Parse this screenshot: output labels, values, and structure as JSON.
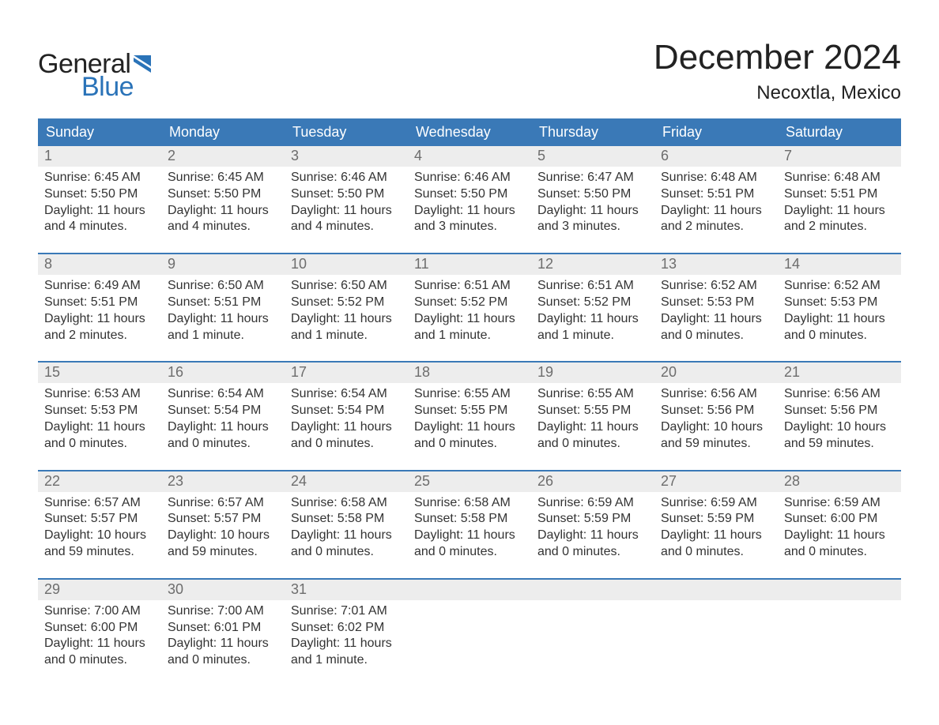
{
  "brand": {
    "word1": "General",
    "word2": "Blue"
  },
  "title": "December 2024",
  "location": "Necoxtla, Mexico",
  "colors": {
    "header_bg": "#3a79b7",
    "header_text": "#ffffff",
    "daynum_bg": "#ededed",
    "daynum_text": "#6d6d6d",
    "body_text": "#333333",
    "rule": "#3a79b7",
    "brand_blue": "#2a73b8"
  },
  "weekdays": [
    "Sunday",
    "Monday",
    "Tuesday",
    "Wednesday",
    "Thursday",
    "Friday",
    "Saturday"
  ],
  "weeks": [
    [
      {
        "n": "1",
        "sunrise": "Sunrise: 6:45 AM",
        "sunset": "Sunset: 5:50 PM",
        "dl1": "Daylight: 11 hours",
        "dl2": "and 4 minutes."
      },
      {
        "n": "2",
        "sunrise": "Sunrise: 6:45 AM",
        "sunset": "Sunset: 5:50 PM",
        "dl1": "Daylight: 11 hours",
        "dl2": "and 4 minutes."
      },
      {
        "n": "3",
        "sunrise": "Sunrise: 6:46 AM",
        "sunset": "Sunset: 5:50 PM",
        "dl1": "Daylight: 11 hours",
        "dl2": "and 4 minutes."
      },
      {
        "n": "4",
        "sunrise": "Sunrise: 6:46 AM",
        "sunset": "Sunset: 5:50 PM",
        "dl1": "Daylight: 11 hours",
        "dl2": "and 3 minutes."
      },
      {
        "n": "5",
        "sunrise": "Sunrise: 6:47 AM",
        "sunset": "Sunset: 5:50 PM",
        "dl1": "Daylight: 11 hours",
        "dl2": "and 3 minutes."
      },
      {
        "n": "6",
        "sunrise": "Sunrise: 6:48 AM",
        "sunset": "Sunset: 5:51 PM",
        "dl1": "Daylight: 11 hours",
        "dl2": "and 2 minutes."
      },
      {
        "n": "7",
        "sunrise": "Sunrise: 6:48 AM",
        "sunset": "Sunset: 5:51 PM",
        "dl1": "Daylight: 11 hours",
        "dl2": "and 2 minutes."
      }
    ],
    [
      {
        "n": "8",
        "sunrise": "Sunrise: 6:49 AM",
        "sunset": "Sunset: 5:51 PM",
        "dl1": "Daylight: 11 hours",
        "dl2": "and 2 minutes."
      },
      {
        "n": "9",
        "sunrise": "Sunrise: 6:50 AM",
        "sunset": "Sunset: 5:51 PM",
        "dl1": "Daylight: 11 hours",
        "dl2": "and 1 minute."
      },
      {
        "n": "10",
        "sunrise": "Sunrise: 6:50 AM",
        "sunset": "Sunset: 5:52 PM",
        "dl1": "Daylight: 11 hours",
        "dl2": "and 1 minute."
      },
      {
        "n": "11",
        "sunrise": "Sunrise: 6:51 AM",
        "sunset": "Sunset: 5:52 PM",
        "dl1": "Daylight: 11 hours",
        "dl2": "and 1 minute."
      },
      {
        "n": "12",
        "sunrise": "Sunrise: 6:51 AM",
        "sunset": "Sunset: 5:52 PM",
        "dl1": "Daylight: 11 hours",
        "dl2": "and 1 minute."
      },
      {
        "n": "13",
        "sunrise": "Sunrise: 6:52 AM",
        "sunset": "Sunset: 5:53 PM",
        "dl1": "Daylight: 11 hours",
        "dl2": "and 0 minutes."
      },
      {
        "n": "14",
        "sunrise": "Sunrise: 6:52 AM",
        "sunset": "Sunset: 5:53 PM",
        "dl1": "Daylight: 11 hours",
        "dl2": "and 0 minutes."
      }
    ],
    [
      {
        "n": "15",
        "sunrise": "Sunrise: 6:53 AM",
        "sunset": "Sunset: 5:53 PM",
        "dl1": "Daylight: 11 hours",
        "dl2": "and 0 minutes."
      },
      {
        "n": "16",
        "sunrise": "Sunrise: 6:54 AM",
        "sunset": "Sunset: 5:54 PM",
        "dl1": "Daylight: 11 hours",
        "dl2": "and 0 minutes."
      },
      {
        "n": "17",
        "sunrise": "Sunrise: 6:54 AM",
        "sunset": "Sunset: 5:54 PM",
        "dl1": "Daylight: 11 hours",
        "dl2": "and 0 minutes."
      },
      {
        "n": "18",
        "sunrise": "Sunrise: 6:55 AM",
        "sunset": "Sunset: 5:55 PM",
        "dl1": "Daylight: 11 hours",
        "dl2": "and 0 minutes."
      },
      {
        "n": "19",
        "sunrise": "Sunrise: 6:55 AM",
        "sunset": "Sunset: 5:55 PM",
        "dl1": "Daylight: 11 hours",
        "dl2": "and 0 minutes."
      },
      {
        "n": "20",
        "sunrise": "Sunrise: 6:56 AM",
        "sunset": "Sunset: 5:56 PM",
        "dl1": "Daylight: 10 hours",
        "dl2": "and 59 minutes."
      },
      {
        "n": "21",
        "sunrise": "Sunrise: 6:56 AM",
        "sunset": "Sunset: 5:56 PM",
        "dl1": "Daylight: 10 hours",
        "dl2": "and 59 minutes."
      }
    ],
    [
      {
        "n": "22",
        "sunrise": "Sunrise: 6:57 AM",
        "sunset": "Sunset: 5:57 PM",
        "dl1": "Daylight: 10 hours",
        "dl2": "and 59 minutes."
      },
      {
        "n": "23",
        "sunrise": "Sunrise: 6:57 AM",
        "sunset": "Sunset: 5:57 PM",
        "dl1": "Daylight: 10 hours",
        "dl2": "and 59 minutes."
      },
      {
        "n": "24",
        "sunrise": "Sunrise: 6:58 AM",
        "sunset": "Sunset: 5:58 PM",
        "dl1": "Daylight: 11 hours",
        "dl2": "and 0 minutes."
      },
      {
        "n": "25",
        "sunrise": "Sunrise: 6:58 AM",
        "sunset": "Sunset: 5:58 PM",
        "dl1": "Daylight: 11 hours",
        "dl2": "and 0 minutes."
      },
      {
        "n": "26",
        "sunrise": "Sunrise: 6:59 AM",
        "sunset": "Sunset: 5:59 PM",
        "dl1": "Daylight: 11 hours",
        "dl2": "and 0 minutes."
      },
      {
        "n": "27",
        "sunrise": "Sunrise: 6:59 AM",
        "sunset": "Sunset: 5:59 PM",
        "dl1": "Daylight: 11 hours",
        "dl2": "and 0 minutes."
      },
      {
        "n": "28",
        "sunrise": "Sunrise: 6:59 AM",
        "sunset": "Sunset: 6:00 PM",
        "dl1": "Daylight: 11 hours",
        "dl2": "and 0 minutes."
      }
    ],
    [
      {
        "n": "29",
        "sunrise": "Sunrise: 7:00 AM",
        "sunset": "Sunset: 6:00 PM",
        "dl1": "Daylight: 11 hours",
        "dl2": "and 0 minutes."
      },
      {
        "n": "30",
        "sunrise": "Sunrise: 7:00 AM",
        "sunset": "Sunset: 6:01 PM",
        "dl1": "Daylight: 11 hours",
        "dl2": "and 0 minutes."
      },
      {
        "n": "31",
        "sunrise": "Sunrise: 7:01 AM",
        "sunset": "Sunset: 6:02 PM",
        "dl1": "Daylight: 11 hours",
        "dl2": "and 1 minute."
      },
      {
        "empty": true
      },
      {
        "empty": true
      },
      {
        "empty": true
      },
      {
        "empty": true
      }
    ]
  ]
}
